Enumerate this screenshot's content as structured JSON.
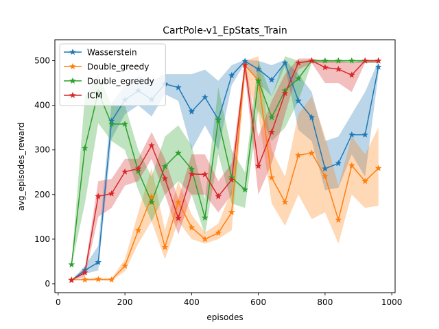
{
  "chart_data": {
    "type": "line",
    "title": "CartPole-v1_EpStats_Train",
    "xlabel": "episodes",
    "ylabel": "avg_episodes_reward",
    "xlim": [
      -10,
      1010
    ],
    "ylim": [
      -20,
      547
    ],
    "xticks": [
      0,
      200,
      400,
      600,
      800,
      1000
    ],
    "yticks": [
      0,
      100,
      200,
      300,
      400,
      500
    ],
    "grid": false,
    "legend_position": "top-left",
    "series": [
      {
        "name": "Wasserstein",
        "color": "#1f77b4",
        "x": [
          40,
          80,
          120,
          160,
          200,
          240,
          280,
          320,
          360,
          400,
          440,
          480,
          520,
          560,
          600,
          640,
          680,
          720,
          760,
          800,
          840,
          880,
          920,
          960
        ],
        "values": [
          8,
          30,
          48,
          365,
          412,
          433,
          413,
          448,
          440,
          386,
          418,
          368,
          467,
          499,
          481,
          457,
          495,
          410,
          373,
          258,
          270,
          334,
          334,
          486
        ],
        "upper": [
          8,
          40,
          85,
          405,
          445,
          465,
          455,
          470,
          470,
          470,
          480,
          455,
          490,
          502,
          500,
          490,
          502,
          470,
          430,
          320,
          330,
          380,
          430,
          500
        ],
        "lower": [
          8,
          22,
          30,
          325,
          380,
          400,
          375,
          425,
          410,
          300,
          355,
          300,
          445,
          495,
          450,
          420,
          488,
          345,
          320,
          210,
          215,
          290,
          240,
          470
        ]
      },
      {
        "name": "Double_greedy",
        "color": "#ff7f0e",
        "x": [
          40,
          80,
          120,
          160,
          200,
          240,
          280,
          320,
          360,
          400,
          440,
          480,
          520,
          560,
          600,
          640,
          680,
          720,
          760,
          800,
          840,
          880,
          920,
          960
        ],
        "values": [
          9,
          9,
          10,
          9,
          40,
          120,
          195,
          82,
          183,
          126,
          100,
          114,
          160,
          490,
          456,
          238,
          183,
          288,
          293,
          241,
          143,
          265,
          230,
          259
        ],
        "upper": [
          9,
          12,
          14,
          12,
          55,
          160,
          260,
          120,
          230,
          155,
          115,
          135,
          210,
          500,
          510,
          300,
          240,
          380,
          420,
          330,
          220,
          330,
          290,
          350
        ],
        "lower": [
          9,
          7,
          7,
          7,
          28,
          90,
          140,
          55,
          140,
          100,
          90,
          100,
          120,
          460,
          380,
          180,
          130,
          200,
          145,
          160,
          90,
          200,
          170,
          175
        ]
      },
      {
        "name": "Double_egreedy",
        "color": "#2ca02c",
        "x": [
          40,
          80,
          120,
          160,
          200,
          240,
          280,
          320,
          360,
          400,
          440,
          480,
          520,
          560,
          600,
          640,
          680,
          720,
          760,
          800,
          840,
          880,
          920,
          960
        ],
        "values": [
          43,
          304,
          430,
          358,
          358,
          252,
          183,
          263,
          293,
          257,
          148,
          367,
          238,
          211,
          455,
          373,
          433,
          460,
          500,
          500,
          500,
          500,
          500,
          500
        ],
        "upper": [
          45,
          420,
          470,
          400,
          400,
          300,
          240,
          330,
          355,
          310,
          190,
          440,
          300,
          250,
          500,
          420,
          510,
          500,
          502,
          502,
          502,
          502,
          502,
          502
        ],
        "lower": [
          40,
          180,
          360,
          320,
          300,
          210,
          140,
          200,
          230,
          200,
          110,
          290,
          180,
          170,
          390,
          320,
          350,
          410,
          495,
          495,
          495,
          495,
          495,
          495
        ]
      },
      {
        "name": "ICM",
        "color": "#d62728",
        "x": [
          40,
          80,
          120,
          160,
          200,
          240,
          280,
          320,
          360,
          400,
          440,
          480,
          520,
          560,
          600,
          640,
          680,
          720,
          760,
          800,
          840,
          880,
          920,
          960
        ],
        "values": [
          8,
          25,
          196,
          202,
          251,
          258,
          310,
          236,
          147,
          246,
          245,
          196,
          233,
          490,
          264,
          340,
          427,
          495,
          500,
          485,
          481,
          468,
          500,
          500
        ],
        "upper": [
          8,
          35,
          230,
          235,
          280,
          280,
          340,
          280,
          190,
          290,
          290,
          230,
          270,
          500,
          330,
          410,
          470,
          505,
          505,
          500,
          500,
          495,
          502,
          502
        ],
        "lower": [
          8,
          15,
          150,
          170,
          220,
          230,
          280,
          200,
          110,
          200,
          200,
          160,
          200,
          470,
          200,
          270,
          380,
          480,
          495,
          450,
          450,
          430,
          495,
          495
        ]
      }
    ]
  }
}
